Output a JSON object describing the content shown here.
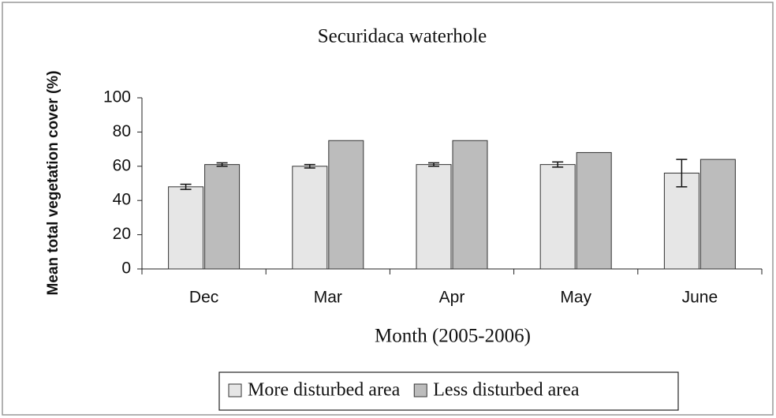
{
  "chart_data": {
    "type": "bar",
    "title": "Securidaca waterhole",
    "x_label": "Month (2005-2006)",
    "y_label": "Mean total vegetation cover (%)",
    "categories": [
      "Dec",
      "Mar",
      "Apr",
      "May",
      "June"
    ],
    "series": [
      {
        "name": "More disturbed area",
        "color": "#e6e6e6",
        "values": [
          48,
          60,
          61,
          61,
          56
        ],
        "errors": [
          1.5,
          1,
          1,
          1.5,
          8
        ]
      },
      {
        "name": "Less disturbed area",
        "color": "#bcbcbc",
        "values": [
          61,
          75,
          75,
          68,
          64
        ],
        "errors": [
          1,
          null,
          null,
          null,
          null
        ]
      }
    ],
    "ylim": [
      0,
      100
    ],
    "yticks": [
      0,
      20,
      40,
      60,
      80,
      100
    ],
    "grid": false,
    "legend": "bottom"
  }
}
